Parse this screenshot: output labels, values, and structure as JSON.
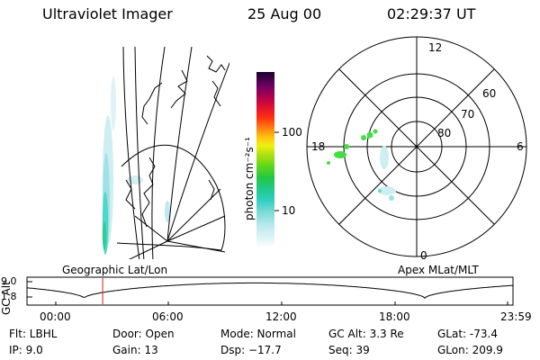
{
  "header": {
    "instrument": "Ultraviolet Imager",
    "date": "25 Aug 00",
    "time": "02:29:37 UT"
  },
  "colorbar": {
    "unit_label": "photon cm⁻²s⁻¹",
    "ticks": [
      "100",
      "10"
    ]
  },
  "polar_plot": {
    "mlt_labels": [
      "12",
      "18",
      "6",
      "0"
    ],
    "lat_labels": [
      "60",
      "70",
      "80"
    ]
  },
  "panel_labels": {
    "geographic": "Geographic Lat/Lon",
    "apex": "Apex MLat/MLT"
  },
  "altitude_plot": {
    "axis_title": "GC Alt",
    "y_ticks": [
      "9.0",
      "1.8"
    ],
    "x_ticks": [
      "00:00",
      "06:00",
      "12:00",
      "18:00",
      "23:59"
    ],
    "y_range": [
      1.8,
      9.0
    ],
    "x_range_hours": [
      0,
      24
    ],
    "marker_time_hours": 2.49,
    "marker_color": "#d02020"
  },
  "status": {
    "flt": "Flt: LBHL",
    "door": "Door: Open",
    "mode": "Mode: Normal",
    "gc_alt": "GC Alt: 3.3 Re",
    "glat": "GLat: -73.4",
    "ip": "IP: 9.0",
    "gain": "Gain: 13",
    "dsp": "Dsp: −17.7",
    "seq": "Seq: 39",
    "glon": "GLon: 209.9"
  },
  "colors": {
    "background": "#ffffff",
    "emission_low": "#cfeef2",
    "emission_mid": "#6fd8c8",
    "emission_high": "#44dd44",
    "marker": "#d02020"
  }
}
